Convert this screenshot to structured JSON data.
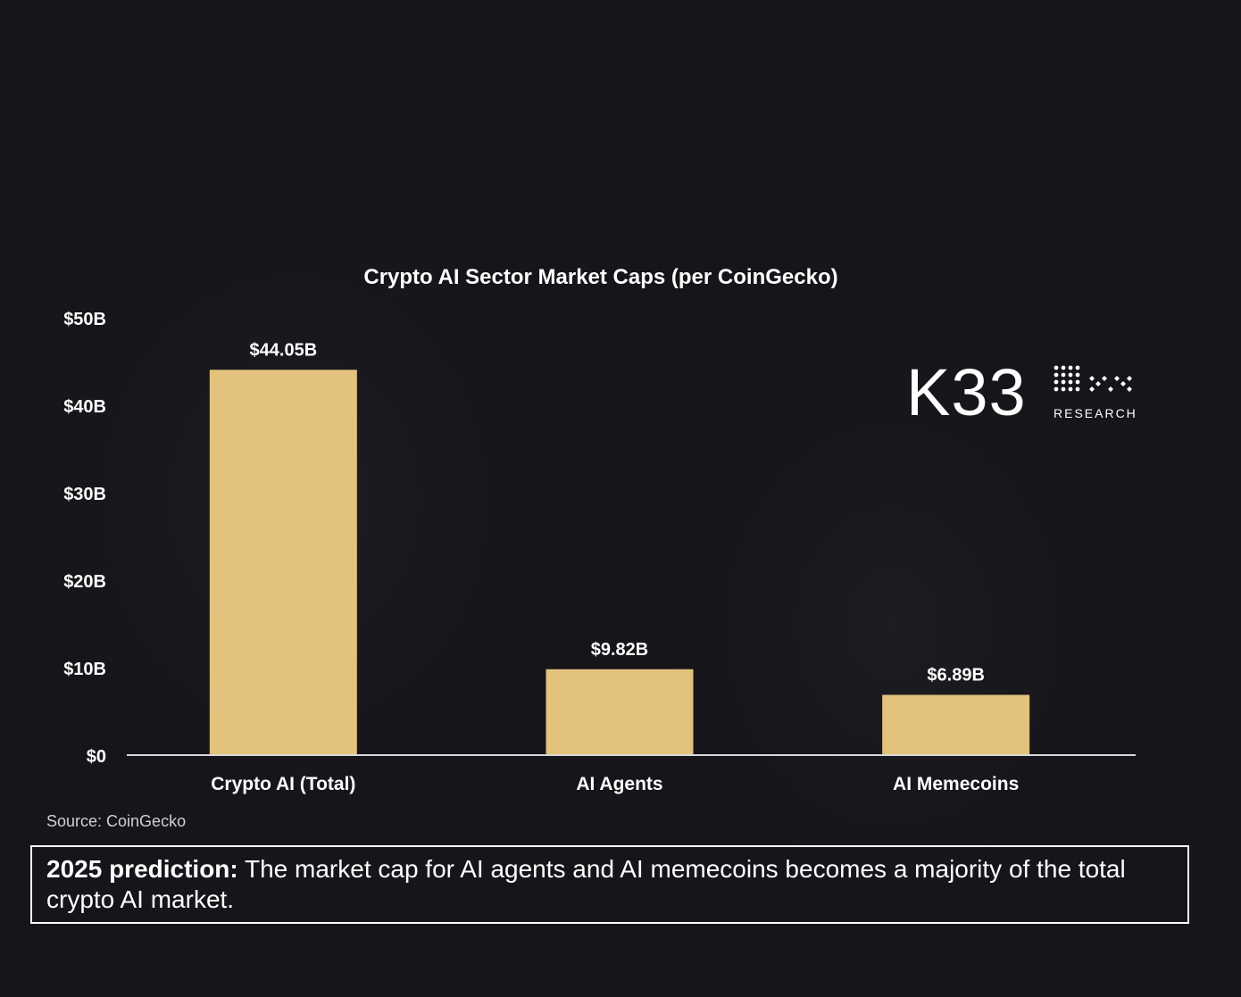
{
  "chart_data": {
    "type": "bar",
    "title": "Crypto AI Sector Market Caps (per CoinGecko)",
    "categories": [
      "Crypto AI (Total)",
      "AI Agents",
      "AI Memecoins"
    ],
    "values": [
      44.05,
      9.82,
      6.89
    ],
    "value_labels": [
      "$44.05B",
      "$9.82B",
      "$6.89B"
    ],
    "ylim": [
      0,
      50
    ],
    "yticks": [
      0,
      10,
      20,
      30,
      40,
      50
    ],
    "ytick_labels": [
      "$0",
      "$10B",
      "$20B",
      "$30B",
      "$40B",
      "$50B"
    ],
    "xlabel": "",
    "ylabel": "",
    "grid": false,
    "bar_color": "#e2c27c",
    "axis_color": "#d9d9d9"
  },
  "logo": {
    "name": "K33",
    "subtitle": "RESEARCH"
  },
  "source": "Source: CoinGecko",
  "prediction": {
    "lead": "2025 prediction:",
    "text": " The market cap for AI agents and AI memecoins becomes a majority of the total crypto AI market."
  },
  "colors": {
    "background": "#15151a",
    "accent": "#e2c27c",
    "text": "#ffffff"
  }
}
